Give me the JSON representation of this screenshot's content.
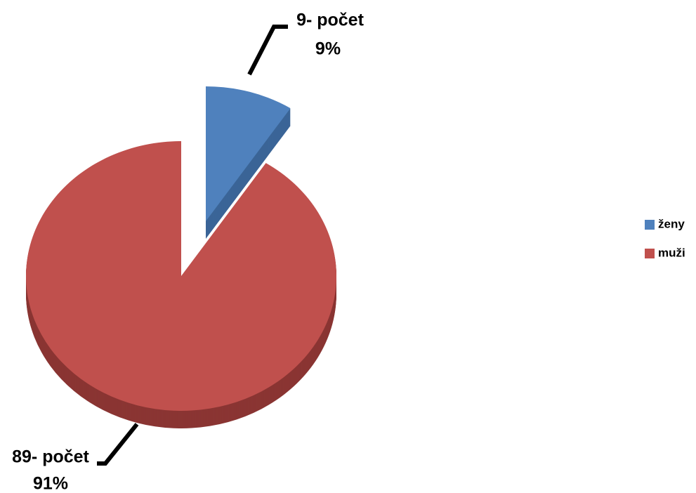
{
  "chart_data": {
    "type": "pie",
    "categories": [
      "ženy",
      "muži"
    ],
    "values": [
      9,
      89
    ],
    "value_labels": [
      "9- počet",
      "89- počet"
    ],
    "percent_labels": [
      "9%",
      "91%"
    ],
    "colors": [
      "#4f81bd",
      "#c0504d"
    ],
    "side_colors": [
      "#3b6597",
      "#8a3533"
    ],
    "legend": "right"
  }
}
